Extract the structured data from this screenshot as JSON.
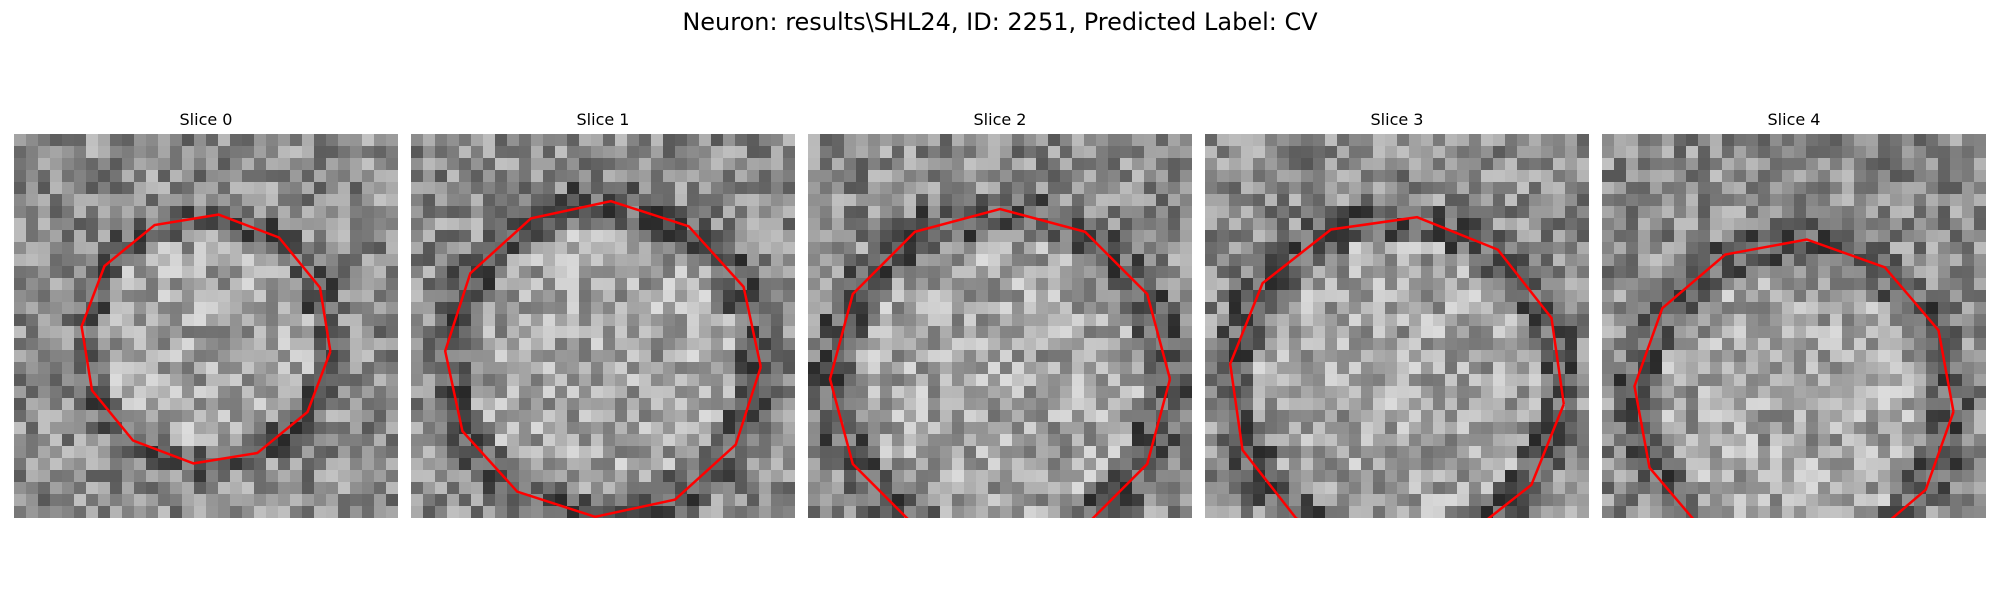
{
  "title": "Neuron: results\\SHL24, ID: 2251, Predicted Label: CV",
  "contour_color": "#ff0000",
  "panels": [
    {
      "title": "Slice 0"
    },
    {
      "title": "Slice 1"
    },
    {
      "title": "Slice 2"
    },
    {
      "title": "Slice 3"
    },
    {
      "title": "Slice 4"
    }
  ]
}
